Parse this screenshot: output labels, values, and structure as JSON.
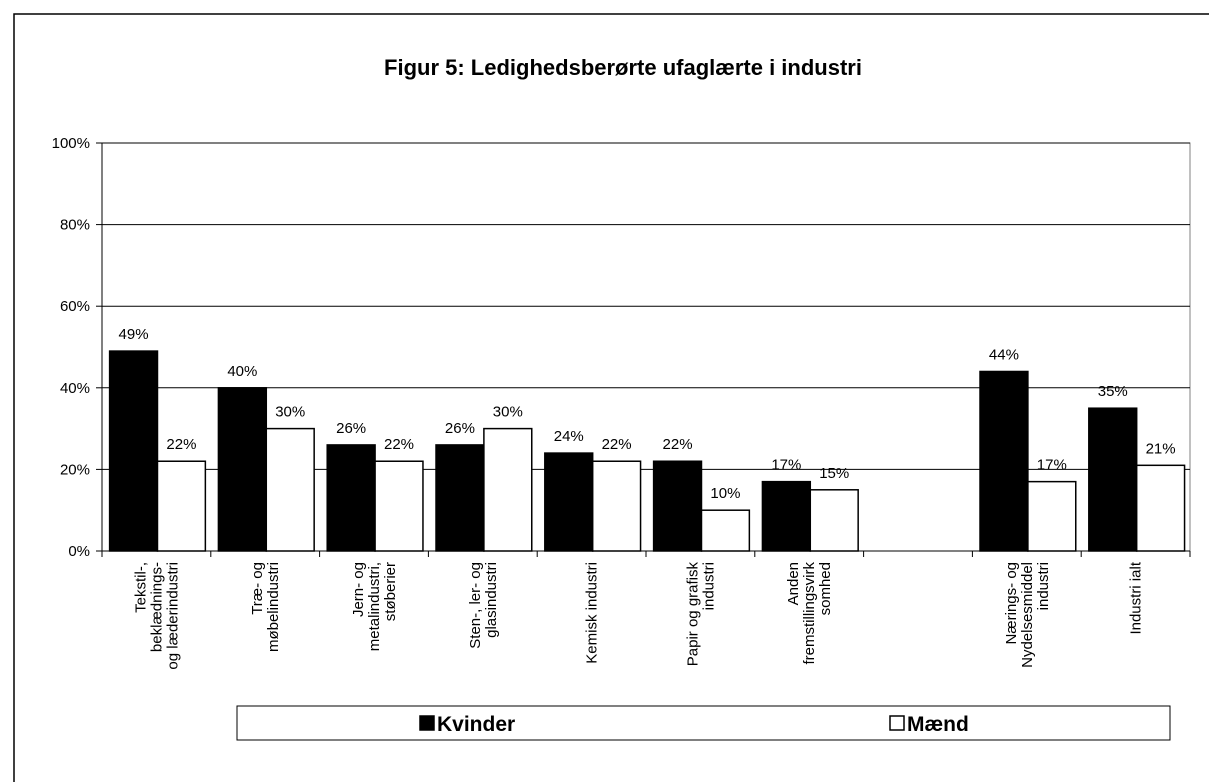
{
  "chart_data": {
    "type": "bar",
    "title": "Figur 5: Ledighedsberørte ufaglærte i industri",
    "categories": [
      "Tekstil-,\nbeklædnings-\nog læderindustri",
      "Træ- og\nmøbelindustri",
      "Jern- og\nmetalindustri,\nstøberier",
      "Sten-, ler- og\nglasindustri",
      "Kemisk industri",
      "Papir og grafisk\nindustri",
      "Anden\nfremstillingsvirk\nsomhed",
      null,
      "Nærings- og\nNydelsesmiddel\nindustri",
      "Industri ialt"
    ],
    "series": [
      {
        "name": "Kvinder",
        "color": "#000000",
        "values": [
          49,
          40,
          26,
          26,
          24,
          22,
          17,
          null,
          44,
          35
        ],
        "value_labels": [
          "49%",
          "40%",
          "26%",
          "26%",
          "24%",
          "22%",
          "17%",
          null,
          "44%",
          "35%"
        ]
      },
      {
        "name": "Mænd",
        "color": "#ffffff",
        "values": [
          22,
          30,
          22,
          30,
          22,
          10,
          15,
          null,
          17,
          21
        ],
        "value_labels": [
          "22%",
          "30%",
          "22%",
          "30%",
          "22%",
          "10%",
          "15%",
          null,
          "17%",
          "21%"
        ]
      }
    ],
    "ylim": [
      0,
      100
    ],
    "yticks": [
      {
        "value": 0,
        "label": "0%"
      },
      {
        "value": 20,
        "label": "20%"
      },
      {
        "value": 40,
        "label": "40%"
      },
      {
        "value": 60,
        "label": "60%"
      },
      {
        "value": 80,
        "label": "80%"
      },
      {
        "value": 100,
        "label": "100%"
      }
    ],
    "grid": true,
    "legend": "bottom"
  }
}
